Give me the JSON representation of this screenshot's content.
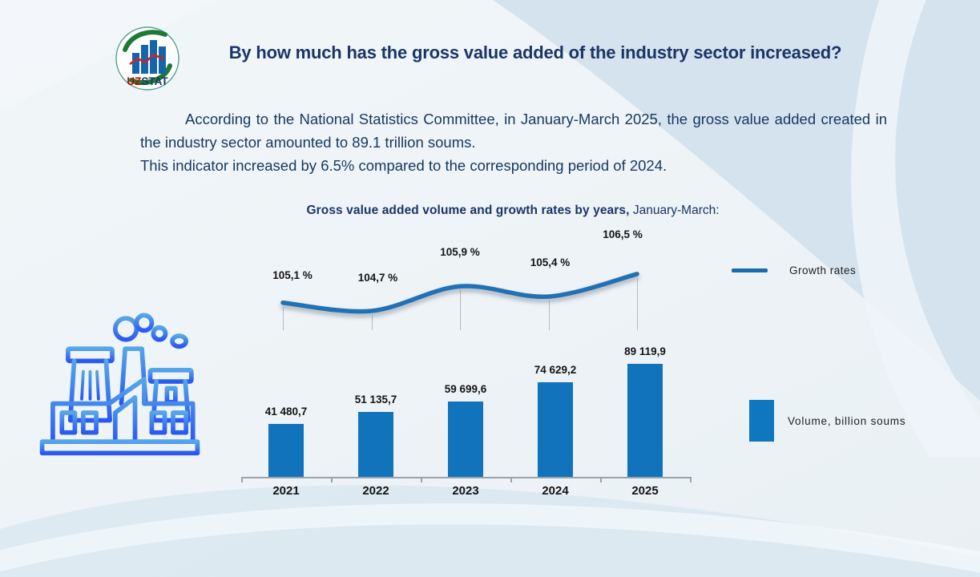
{
  "slide": {
    "title": "By how much has the gross value added of the industry sector increased?",
    "paragraph_1": "According to the National Statistics Committee, in January-March 2025, the gross value added created in the industry sector amounted to 89.1 trillion soums.",
    "paragraph_2": "This indicator increased by 6.5% compared to the corresponding period of 2024."
  },
  "logo": {
    "uz": "UZ",
    "stat": "STAT"
  },
  "chart_title": {
    "bold_part": "Gross value added volume and growth rates by years,",
    "regular_part": " January-March:"
  },
  "legend": {
    "line_label": "Growth rates",
    "bar_label": "Volume, billion soums"
  },
  "chart_data": {
    "type": "bar",
    "subtype": "combo bar+line",
    "title": "Gross value added volume and growth rates by years, January-March:",
    "categories": [
      "2021",
      "2022",
      "2023",
      "2024",
      "2025"
    ],
    "series": [
      {
        "name": "Growth rates",
        "type": "line",
        "values": [
          105.1,
          104.7,
          105.9,
          105.4,
          106.5
        ],
        "labels": [
          "105,1 %",
          "104,7 %",
          "105,9 %",
          "105,4 %",
          "106,5 %"
        ],
        "color": "#2171b5"
      },
      {
        "name": "Volume, billion soums",
        "type": "bar",
        "values": [
          41480.7,
          51135.7,
          59699.6,
          74629.2,
          89119.9
        ],
        "labels": [
          "41 480,7",
          "51 135,7",
          "59 699,6",
          "74 629,2",
          "89 119,9"
        ],
        "color": "#1273bd"
      }
    ],
    "xlabel": "",
    "ylabel": "",
    "legend_position": "right",
    "grid": false,
    "bar_ylim": [
      0,
      95000
    ],
    "line_ylim": [
      104,
      107
    ]
  },
  "colors": {
    "bar": "#1273bd",
    "line": "#2171b5",
    "title_text": "#1b3566",
    "body_text": "#17375e",
    "label_text": "#141414",
    "axis": "#9aa3aa",
    "bg_band": "#d2e1ed"
  }
}
